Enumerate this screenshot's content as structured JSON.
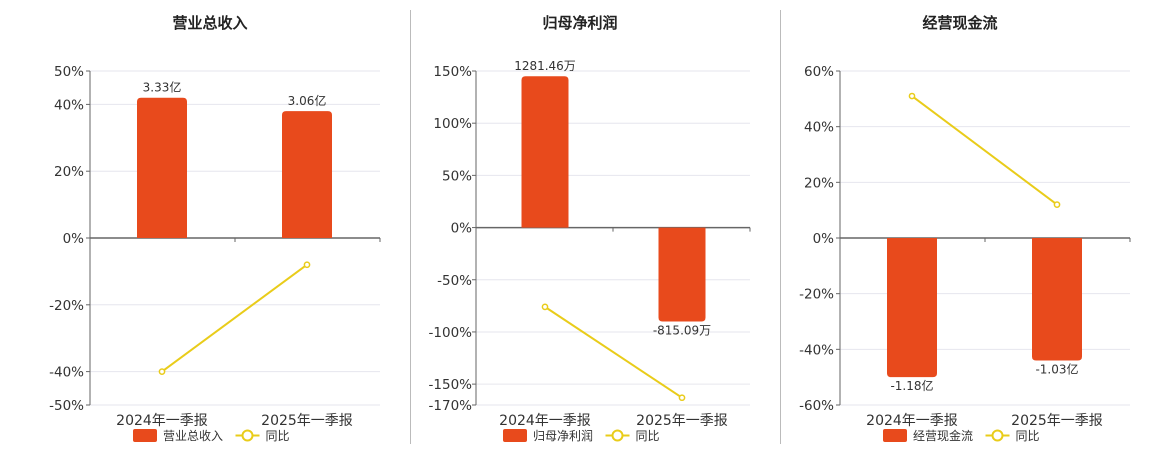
{
  "colors": {
    "bar": "#e84a1c",
    "line": "#e9cc1a",
    "marker_fill": "#ffffff",
    "grid": "#e6e6ee",
    "axis": "#666666",
    "divider": "#bbbbbb",
    "text": "#333333"
  },
  "chart_data": [
    {
      "type": "bar",
      "title": "营业总收入",
      "categories": [
        "2024年一季报",
        "2025年一季报"
      ],
      "series": [
        {
          "name": "营业总收入",
          "type": "bar",
          "values": [
            42,
            38
          ],
          "data_labels": [
            "3.33亿",
            "3.06亿"
          ]
        },
        {
          "name": "同比",
          "type": "line",
          "values": [
            -40,
            -8
          ]
        }
      ],
      "y_ticks": [
        "50%",
        "40%",
        "20%",
        "0%",
        "-20%",
        "-40%",
        "-50%"
      ],
      "ylim": [
        -50,
        50
      ],
      "y_unit": "%",
      "grid": true,
      "legend": "bottom"
    },
    {
      "type": "bar",
      "title": "归母净利润",
      "categories": [
        "2024年一季报",
        "2025年一季报"
      ],
      "series": [
        {
          "name": "归母净利润",
          "type": "bar",
          "values": [
            145,
            -90
          ],
          "data_labels": [
            "1281.46万",
            "-815.09万"
          ]
        },
        {
          "name": "同比",
          "type": "line",
          "values": [
            -76,
            -163
          ]
        }
      ],
      "y_ticks": [
        "150%",
        "100%",
        "50%",
        "0%",
        "-50%",
        "-100%",
        "-150%",
        "-170%"
      ],
      "ylim": [
        -170,
        150
      ],
      "y_unit": "%",
      "grid": true,
      "legend": "bottom"
    },
    {
      "type": "bar",
      "title": "经营现金流",
      "categories": [
        "2024年一季报",
        "2025年一季报"
      ],
      "series": [
        {
          "name": "经营现金流",
          "type": "bar",
          "values": [
            -50,
            -44
          ],
          "data_labels": [
            "-1.18亿",
            "-1.03亿"
          ]
        },
        {
          "name": "同比",
          "type": "line",
          "values": [
            51,
            12
          ]
        }
      ],
      "y_ticks": [
        "60%",
        "40%",
        "20%",
        "0%",
        "-20%",
        "-40%",
        "-60%"
      ],
      "ylim": [
        -60,
        60
      ],
      "y_unit": "%",
      "grid": true,
      "legend": "bottom"
    }
  ]
}
